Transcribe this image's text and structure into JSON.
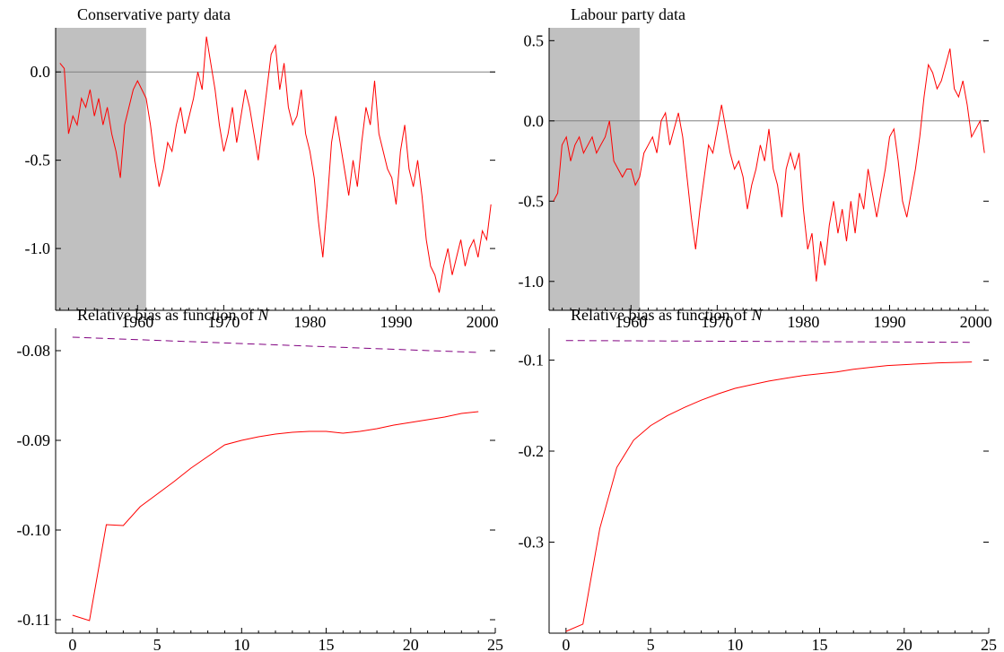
{
  "chart_data": [
    {
      "type": "line",
      "title": "Conservative party data",
      "xlabel": "",
      "ylabel": "",
      "xlim": [
        1950.5,
        2001.5
      ],
      "ylim": [
        -1.35,
        0.25
      ],
      "x_ticks": [
        1960,
        1970,
        1980,
        1990,
        2000
      ],
      "y_ticks": [
        -1.0,
        -0.5,
        0.0
      ],
      "y_tick_labels": [
        "-1.0",
        "-0.5",
        "0.0"
      ],
      "shaded_region": [
        1950.5,
        1961
      ],
      "reference_line": 0.0,
      "colors": {
        "series": "#ff0000",
        "shade": "#c0c0c0",
        "reference": "#808080"
      },
      "series": [
        {
          "x": [
            1951,
            1951.5,
            1952,
            1952.5,
            1953,
            1953.5,
            1954,
            1954.5,
            1955,
            1955.5,
            1956,
            1956.5,
            1957,
            1957.5,
            1958,
            1958.5,
            1959,
            1959.5,
            1960,
            1960.5,
            1961,
            1961.5,
            1962,
            1962.5,
            1963,
            1963.5,
            1964,
            1964.5,
            1965,
            1965.5,
            1966,
            1966.5,
            1967,
            1967.5,
            1968,
            1968.5,
            1969,
            1969.5,
            1970,
            1970.5,
            1971,
            1971.5,
            1972,
            1972.5,
            1973,
            1973.5,
            1974,
            1974.5,
            1975,
            1975.5,
            1976,
            1976.5,
            1977,
            1977.5,
            1978,
            1978.5,
            1979,
            1979.5,
            1980,
            1980.5,
            1981,
            1981.5,
            1982,
            1982.5,
            1983,
            1983.5,
            1984,
            1984.5,
            1985,
            1985.5,
            1986,
            1986.5,
            1987,
            1987.5,
            1988,
            1988.5,
            1989,
            1989.5,
            1990,
            1990.5,
            1991,
            1991.5,
            1992,
            1992.5,
            1993,
            1993.5,
            1994,
            1994.5,
            1995,
            1995.5,
            1996,
            1996.5,
            1997,
            1997.5,
            1998,
            1998.5,
            1999,
            1999.5,
            2000,
            2000.5,
            2001
          ],
          "y": [
            0.05,
            0.02,
            -0.35,
            -0.25,
            -0.3,
            -0.15,
            -0.2,
            -0.1,
            -0.25,
            -0.15,
            -0.3,
            -0.2,
            -0.35,
            -0.45,
            -0.6,
            -0.3,
            -0.2,
            -0.1,
            -0.05,
            -0.1,
            -0.15,
            -0.3,
            -0.5,
            -0.65,
            -0.55,
            -0.4,
            -0.45,
            -0.3,
            -0.2,
            -0.35,
            -0.25,
            -0.15,
            0.0,
            -0.1,
            0.2,
            0.05,
            -0.1,
            -0.3,
            -0.45,
            -0.35,
            -0.2,
            -0.4,
            -0.25,
            -0.1,
            -0.2,
            -0.35,
            -0.5,
            -0.3,
            -0.1,
            0.1,
            0.15,
            -0.1,
            0.05,
            -0.2,
            -0.3,
            -0.25,
            -0.1,
            -0.35,
            -0.45,
            -0.6,
            -0.85,
            -1.05,
            -0.75,
            -0.4,
            -0.25,
            -0.4,
            -0.55,
            -0.7,
            -0.5,
            -0.65,
            -0.4,
            -0.2,
            -0.3,
            -0.05,
            -0.35,
            -0.45,
            -0.55,
            -0.6,
            -0.75,
            -0.45,
            -0.3,
            -0.55,
            -0.65,
            -0.5,
            -0.7,
            -0.95,
            -1.1,
            -1.15,
            -1.25,
            -1.1,
            -1.0,
            -1.15,
            -1.05,
            -0.95,
            -1.1,
            -1.0,
            -0.95,
            -1.05,
            -0.9,
            -0.95,
            -0.75
          ]
        }
      ]
    },
    {
      "type": "line",
      "title": "Labour party data",
      "xlabel": "",
      "ylabel": "",
      "xlim": [
        1950.5,
        2001.5
      ],
      "ylim": [
        -1.18,
        0.58
      ],
      "x_ticks": [
        1960,
        1970,
        1980,
        1990,
        2000
      ],
      "y_ticks": [
        -1.0,
        -0.5,
        0.0,
        0.5
      ],
      "y_tick_labels": [
        "-1.0",
        "-0.5",
        "0.0",
        "0.5"
      ],
      "shaded_region": [
        1950.5,
        1961
      ],
      "reference_line": 0.0,
      "colors": {
        "series": "#ff0000",
        "shade": "#c0c0c0",
        "reference": "#808080"
      },
      "series": [
        {
          "x": [
            1951,
            1951.5,
            1952,
            1952.5,
            1953,
            1953.5,
            1954,
            1954.5,
            1955,
            1955.5,
            1956,
            1956.5,
            1957,
            1957.5,
            1958,
            1958.5,
            1959,
            1959.5,
            1960,
            1960.5,
            1961,
            1961.5,
            1962,
            1962.5,
            1963,
            1963.5,
            1964,
            1964.5,
            1965,
            1965.5,
            1966,
            1966.5,
            1967,
            1967.5,
            1968,
            1968.5,
            1969,
            1969.5,
            1970,
            1970.5,
            1971,
            1971.5,
            1972,
            1972.5,
            1973,
            1973.5,
            1974,
            1974.5,
            1975,
            1975.5,
            1976,
            1976.5,
            1977,
            1977.5,
            1978,
            1978.5,
            1979,
            1979.5,
            1980,
            1980.5,
            1981,
            1981.5,
            1982,
            1982.5,
            1983,
            1983.5,
            1984,
            1984.5,
            1985,
            1985.5,
            1986,
            1986.5,
            1987,
            1987.5,
            1988,
            1988.5,
            1989,
            1989.5,
            1990,
            1990.5,
            1991,
            1991.5,
            1992,
            1992.5,
            1993,
            1993.5,
            1994,
            1994.5,
            1995,
            1995.5,
            1996,
            1996.5,
            1997,
            1997.5,
            1998,
            1998.5,
            1999,
            1999.5,
            2000,
            2000.5,
            2001
          ],
          "y": [
            -0.5,
            -0.45,
            -0.15,
            -0.1,
            -0.25,
            -0.15,
            -0.1,
            -0.2,
            -0.15,
            -0.1,
            -0.2,
            -0.15,
            -0.1,
            0.0,
            -0.25,
            -0.3,
            -0.35,
            -0.3,
            -0.3,
            -0.4,
            -0.35,
            -0.2,
            -0.15,
            -0.1,
            -0.2,
            0.0,
            0.05,
            -0.15,
            -0.05,
            0.05,
            -0.1,
            -0.35,
            -0.6,
            -0.8,
            -0.55,
            -0.35,
            -0.15,
            -0.2,
            -0.05,
            0.1,
            -0.05,
            -0.2,
            -0.3,
            -0.25,
            -0.35,
            -0.55,
            -0.4,
            -0.3,
            -0.15,
            -0.25,
            -0.05,
            -0.3,
            -0.4,
            -0.6,
            -0.3,
            -0.2,
            -0.3,
            -0.2,
            -0.55,
            -0.8,
            -0.7,
            -1.0,
            -0.75,
            -0.9,
            -0.65,
            -0.5,
            -0.7,
            -0.55,
            -0.75,
            -0.5,
            -0.7,
            -0.45,
            -0.55,
            -0.3,
            -0.45,
            -0.6,
            -0.45,
            -0.3,
            -0.1,
            -0.05,
            -0.25,
            -0.5,
            -0.6,
            -0.45,
            -0.3,
            -0.1,
            0.15,
            0.35,
            0.3,
            0.2,
            0.25,
            0.35,
            0.45,
            0.2,
            0.15,
            0.25,
            0.1,
            -0.1,
            -0.05,
            0.0,
            -0.2
          ]
        }
      ]
    },
    {
      "type": "line",
      "title": "Relative bias as function of ",
      "title_italic": "N",
      "xlabel": "",
      "ylabel": "",
      "xlim": [
        -1,
        25
      ],
      "ylim": [
        -0.1115,
        -0.0775
      ],
      "x_ticks": [
        0,
        5,
        10,
        15,
        20,
        25
      ],
      "y_ticks": [
        -0.11,
        -0.1,
        -0.09,
        -0.08
      ],
      "y_tick_labels": [
        "-0.11",
        "-0.10",
        "-0.09",
        "-0.08"
      ],
      "colors": {
        "solid": "#ff0000",
        "dashed": "#800080"
      },
      "series": [
        {
          "style": "solid",
          "x": [
            0,
            1,
            2,
            3,
            4,
            5,
            6,
            7,
            8,
            9,
            10,
            11,
            12,
            13,
            14,
            15,
            16,
            17,
            18,
            19,
            20,
            21,
            22,
            23,
            24
          ],
          "y": [
            -0.1095,
            -0.1101,
            -0.0994,
            -0.0995,
            -0.0974,
            -0.096,
            -0.0946,
            -0.0931,
            -0.0918,
            -0.0905,
            -0.09,
            -0.0896,
            -0.0893,
            -0.0891,
            -0.089,
            -0.089,
            -0.0892,
            -0.089,
            -0.0887,
            -0.0883,
            -0.088,
            -0.0877,
            -0.0874,
            -0.087,
            -0.0868
          ]
        },
        {
          "style": "dashed",
          "x": [
            0,
            24
          ],
          "y": [
            -0.0785,
            -0.0802
          ]
        }
      ]
    },
    {
      "type": "line",
      "title": "Relative bias as function of ",
      "title_italic": "N",
      "xlabel": "",
      "ylabel": "",
      "xlim": [
        -1,
        25
      ],
      "ylim": [
        -0.4,
        -0.065
      ],
      "x_ticks": [
        0,
        5,
        10,
        15,
        20,
        25
      ],
      "y_ticks": [
        -0.3,
        -0.2,
        -0.1
      ],
      "y_tick_labels": [
        "-0.3",
        "-0.2",
        "-0.1"
      ],
      "colors": {
        "solid": "#ff0000",
        "dashed": "#800080"
      },
      "series": [
        {
          "style": "solid",
          "x": [
            0,
            1,
            2,
            3,
            4,
            5,
            6,
            7,
            8,
            9,
            10,
            11,
            12,
            13,
            14,
            15,
            16,
            17,
            18,
            19,
            20,
            21,
            22,
            23,
            24
          ],
          "y": [
            -0.398,
            -0.39,
            -0.285,
            -0.218,
            -0.188,
            -0.172,
            -0.161,
            -0.152,
            -0.144,
            -0.137,
            -0.131,
            -0.127,
            -0.123,
            -0.12,
            -0.117,
            -0.115,
            -0.113,
            -0.11,
            -0.108,
            -0.106,
            -0.105,
            -0.104,
            -0.103,
            -0.1025,
            -0.102
          ]
        },
        {
          "style": "dashed",
          "x": [
            0,
            24
          ],
          "y": [
            -0.0785,
            -0.0805
          ]
        }
      ]
    }
  ]
}
